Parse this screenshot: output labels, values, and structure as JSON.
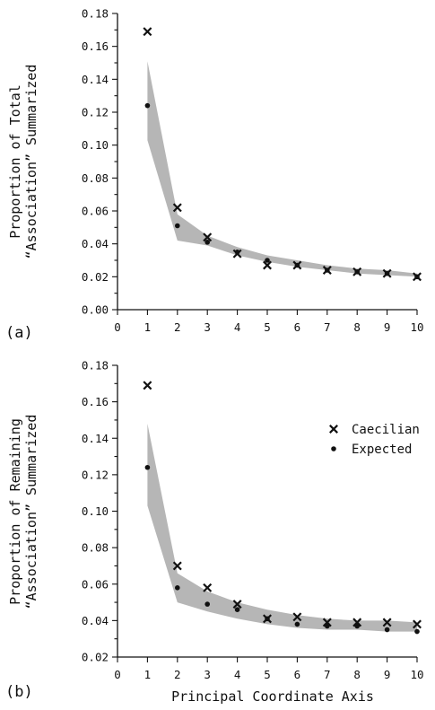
{
  "chart_data": [
    {
      "type": "scatter",
      "panel_label": "(a)",
      "ylabel": [
        "Proportion of Total",
        "“Association” Summarized"
      ],
      "xlabel": "",
      "xlim": [
        0,
        10
      ],
      "ylim": [
        0.0,
        0.18
      ],
      "xticks": [
        0,
        1,
        2,
        3,
        4,
        5,
        6,
        7,
        8,
        9,
        10
      ],
      "yticks": [
        "0.00",
        "0.02",
        "0.04",
        "0.06",
        "0.08",
        "0.10",
        "0.12",
        "0.14",
        "0.16",
        "0.18"
      ],
      "band": {
        "x": [
          1,
          2,
          3,
          4,
          5,
          6,
          7,
          8,
          9,
          10
        ],
        "upper": [
          0.151,
          0.058,
          0.045,
          0.038,
          0.033,
          0.03,
          0.027,
          0.025,
          0.024,
          0.022
        ],
        "lower": [
          0.103,
          0.042,
          0.039,
          0.033,
          0.029,
          0.026,
          0.024,
          0.022,
          0.021,
          0.02
        ]
      },
      "series": [
        {
          "name": "Caecilian",
          "marker": "x",
          "x": [
            1,
            2,
            3,
            4,
            5,
            6,
            7,
            8,
            9,
            10
          ],
          "values": [
            0.169,
            0.062,
            0.044,
            0.034,
            0.027,
            0.027,
            0.024,
            0.023,
            0.022,
            0.02
          ]
        },
        {
          "name": "Expected",
          "marker": "dot",
          "x": [
            1,
            2,
            3,
            4,
            5,
            6,
            7,
            8,
            9,
            10
          ],
          "values": [
            0.124,
            0.051,
            0.041,
            0.035,
            0.03,
            0.027,
            0.024,
            0.023,
            0.022,
            0.02
          ]
        }
      ],
      "legend": null
    },
    {
      "type": "scatter",
      "panel_label": "(b)",
      "ylabel": [
        "Proportion of Remaining",
        "“Association” Summarized"
      ],
      "xlabel": "Principal Coordinate Axis",
      "xlim": [
        0,
        10
      ],
      "ylim": [
        0.02,
        0.18
      ],
      "xticks": [
        0,
        1,
        2,
        3,
        4,
        5,
        6,
        7,
        8,
        9,
        10
      ],
      "yticks": [
        "0.02",
        "0.04",
        "0.06",
        "0.08",
        "0.10",
        "0.12",
        "0.14",
        "0.16",
        "0.18"
      ],
      "band": {
        "x": [
          1,
          2,
          3,
          4,
          5,
          6,
          7,
          8,
          9,
          10
        ],
        "upper": [
          0.148,
          0.066,
          0.056,
          0.05,
          0.046,
          0.043,
          0.041,
          0.04,
          0.04,
          0.039
        ],
        "lower": [
          0.103,
          0.05,
          0.045,
          0.041,
          0.038,
          0.036,
          0.035,
          0.035,
          0.034,
          0.034
        ]
      },
      "series": [
        {
          "name": "Caecilian",
          "marker": "x",
          "x": [
            1,
            2,
            3,
            4,
            5,
            6,
            7,
            8,
            9,
            10
          ],
          "values": [
            0.169,
            0.07,
            0.058,
            0.049,
            0.041,
            0.042,
            0.039,
            0.039,
            0.039,
            0.038
          ]
        },
        {
          "name": "Expected",
          "marker": "dot",
          "x": [
            1,
            2,
            3,
            4,
            5,
            6,
            7,
            8,
            9,
            10
          ],
          "values": [
            0.124,
            0.058,
            0.049,
            0.046,
            0.041,
            0.038,
            0.037,
            0.037,
            0.035,
            0.034
          ]
        }
      ],
      "legend": {
        "placement": "upper-right",
        "entries": [
          {
            "marker": "x",
            "label": "Caecilian"
          },
          {
            "marker": "dot",
            "label": "Expected"
          }
        ]
      }
    }
  ]
}
